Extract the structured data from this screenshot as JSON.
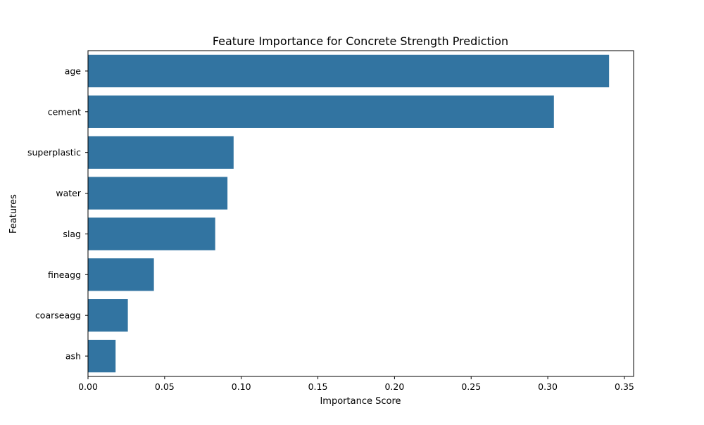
{
  "chart_data": {
    "type": "bar",
    "orientation": "horizontal",
    "title": "Feature Importance for Concrete Strength Prediction",
    "xlabel": "Importance Score",
    "ylabel": "Features",
    "categories": [
      "age",
      "cement",
      "superplastic",
      "water",
      "slag",
      "fineagg",
      "coarseagg",
      "ash"
    ],
    "values": [
      0.34,
      0.304,
      0.095,
      0.091,
      0.083,
      0.043,
      0.026,
      0.018
    ],
    "xlim": [
      0,
      0.356
    ],
    "xticks": [
      0.0,
      0.05,
      0.1,
      0.15,
      0.2,
      0.25,
      0.3,
      0.35
    ],
    "xtick_labels": [
      "0.00",
      "0.05",
      "0.10",
      "0.15",
      "0.20",
      "0.25",
      "0.30",
      "0.35"
    ],
    "grid": false,
    "legend": "none",
    "bar_color": "#3274a1"
  }
}
